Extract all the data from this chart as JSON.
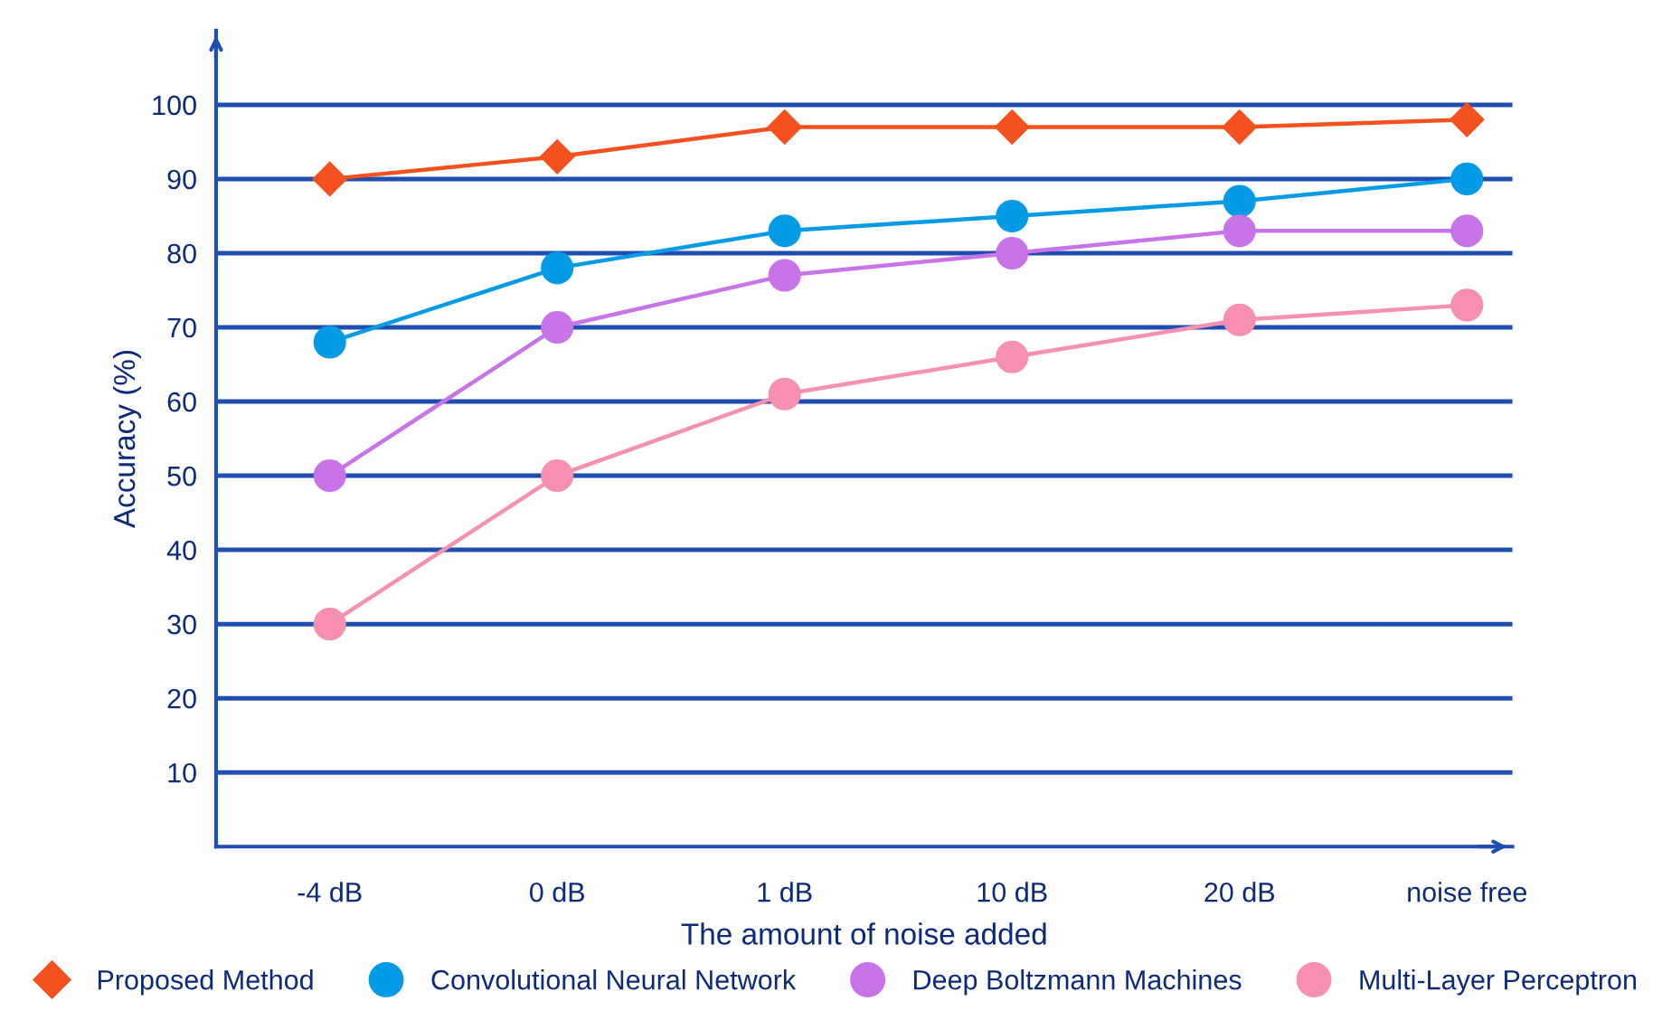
{
  "chart_data": {
    "type": "line",
    "xlabel": "The amount of noise added",
    "ylabel": "Accuracy (%)",
    "categories": [
      "-4 dB",
      "0 dB",
      "1 dB",
      "10 dB",
      "20 dB",
      "noise free"
    ],
    "series": [
      {
        "name": "Proposed Method",
        "color": "#f4511e",
        "marker": "diamond",
        "values": [
          90,
          93,
          97,
          97,
          97,
          98
        ]
      },
      {
        "name": "Convolutional Neural Network",
        "color": "#039be5",
        "marker": "circle",
        "values": [
          68,
          78,
          83,
          85,
          87,
          90
        ]
      },
      {
        "name": "Deep Boltzmann Machines",
        "color": "#c873e8",
        "marker": "circle",
        "values": [
          50,
          70,
          77,
          80,
          83,
          83
        ]
      },
      {
        "name": "Multi-Layer Perceptron",
        "color": "#f78fb3",
        "marker": "circle",
        "values": [
          30,
          50,
          61,
          66,
          71,
          73
        ]
      }
    ],
    "ylim": [
      0,
      110
    ],
    "yticks": [
      10,
      20,
      30,
      40,
      50,
      60,
      70,
      80,
      90,
      100
    ],
    "grid": "y",
    "legend": "bottom"
  }
}
